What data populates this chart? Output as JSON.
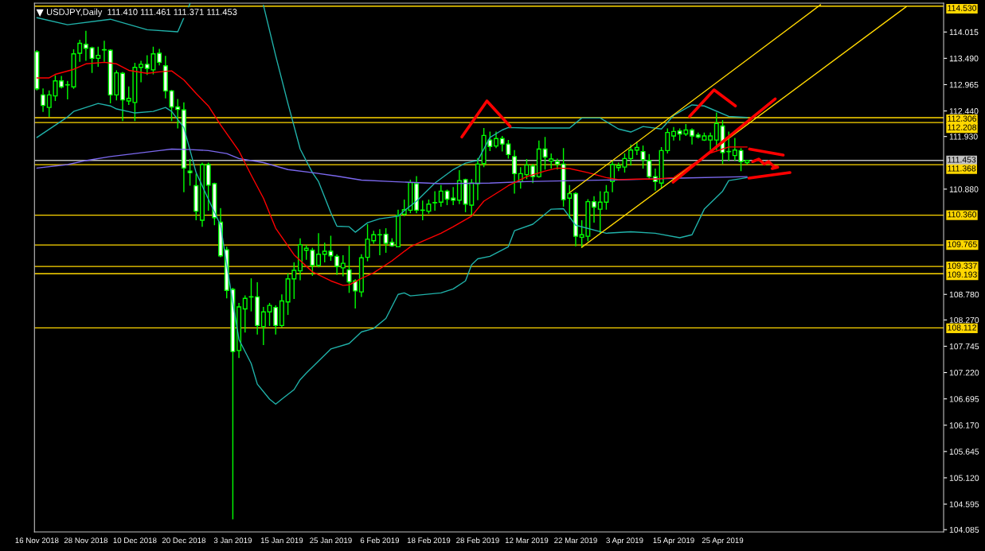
{
  "chart_data": {
    "type": "candlestick",
    "title": "USDJPY,Daily  111.410 111.461 111.371 111.453",
    "categories": [
      "16 Nov 2018",
      null,
      null,
      null,
      null,
      null,
      null,
      null,
      "28 Nov 2018",
      null,
      null,
      null,
      null,
      null,
      null,
      null,
      "10 Dec 2018",
      null,
      null,
      null,
      null,
      null,
      null,
      null,
      "20 Dec 2018",
      null,
      null,
      null,
      null,
      null,
      null,
      null,
      "3 Jan 2019",
      null,
      null,
      null,
      null,
      null,
      null,
      null,
      "15 Jan 2019",
      null,
      null,
      null,
      null,
      null,
      null,
      null,
      "25 Jan 2019",
      null,
      null,
      null,
      null,
      null,
      null,
      null,
      "6 Feb 2019",
      null,
      null,
      null,
      null,
      null,
      null,
      null,
      "18 Feb 2019",
      null,
      null,
      null,
      null,
      null,
      null,
      null,
      "28 Feb 2019",
      null,
      null,
      null,
      null,
      null,
      null,
      null,
      "12 Mar 2019",
      null,
      null,
      null,
      null,
      null,
      null,
      null,
      "22 Mar 2019",
      null,
      null,
      null,
      null,
      null,
      null,
      null,
      "3 Apr 2019",
      null,
      null,
      null,
      null,
      null,
      null,
      null,
      "15 Apr 2019",
      null,
      null,
      null,
      null,
      null,
      null,
      null,
      "25 Apr 2019",
      null,
      null,
      null,
      null,
      null,
      null,
      null,
      null,
      null,
      null,
      null,
      null,
      null,
      null,
      null,
      null,
      null,
      null,
      null,
      null,
      null,
      null,
      null,
      null,
      null,
      null,
      null,
      null,
      null,
      null,
      null,
      null,
      null,
      null,
      null,
      null
    ],
    "ylim": [
      104.04,
      114.59
    ],
    "yticks": [
      {
        "value": 114.015,
        "label": "114.015"
      },
      {
        "value": 113.49,
        "label": "113.490"
      },
      {
        "value": 112.965,
        "label": "112.965"
      },
      {
        "value": 112.44,
        "label": "112.440"
      },
      {
        "value": 111.93,
        "label": "111.930"
      },
      {
        "value": 110.88,
        "label": "110.880"
      },
      {
        "value": 108.78,
        "label": "108.780"
      },
      {
        "value": 108.27,
        "label": "108.270"
      },
      {
        "value": 107.745,
        "label": "107.745"
      },
      {
        "value": 107.22,
        "label": "107.220"
      },
      {
        "value": 106.695,
        "label": "106.695"
      },
      {
        "value": 106.17,
        "label": "106.170"
      },
      {
        "value": 105.645,
        "label": "105.645"
      },
      {
        "value": 105.12,
        "label": "105.120"
      },
      {
        "value": 104.595,
        "label": "104.595"
      },
      {
        "value": 104.085,
        "label": "104.085"
      }
    ],
    "ref_lines": [
      {
        "axis": "y",
        "value": 114.53,
        "label": "114.530",
        "color": "#ffd700"
      },
      {
        "axis": "y",
        "value": 112.306,
        "label": "112.306",
        "color": "#ffd700"
      },
      {
        "axis": "y",
        "value": 112.208,
        "label": "112.208",
        "color": "#ffd700"
      },
      {
        "axis": "y",
        "value": 111.453,
        "label": "111.453",
        "color": "#c0c0c0"
      },
      {
        "axis": "y",
        "value": 111.368,
        "label": "111.368",
        "color": "#ffd700"
      },
      {
        "axis": "y",
        "value": 110.36,
        "label": "110.360",
        "color": "#ffd700"
      },
      {
        "axis": "y",
        "value": 109.765,
        "label": "109.765",
        "color": "#ffd700"
      },
      {
        "axis": "y",
        "value": 109.337,
        "label": "109.337",
        "color": "#ffd700"
      },
      {
        "axis": "y",
        "value": 109.193,
        "label": "109.193",
        "color": "#ffd700"
      },
      {
        "axis": "y",
        "value": 108.112,
        "label": "108.112",
        "color": "#ffd700"
      }
    ],
    "series": [
      {
        "type": "line",
        "color": "#20b2aa",
        "values": [
          114.3,
          null,
          null,
          null,
          null,
          114.16,
          null,
          null,
          null,
          null,
          null,
          null,
          114.27,
          null,
          null,
          null,
          null,
          null,
          114.06,
          null,
          null,
          null,
          null,
          114.02,
          null,
          114.58,
          null,
          null,
          null,
          null,
          null,
          null,
          null,
          null,
          null,
          null,
          null,
          null,
          null,
          null,
          null,
          null,
          null,
          null,
          null,
          null,
          null,
          null,
          null,
          null,
          null,
          null,
          null,
          null,
          null,
          null,
          null,
          null,
          null,
          null,
          null,
          null,
          null,
          null,
          null,
          null,
          null,
          null,
          null,
          null,
          null,
          null,
          null,
          null,
          null,
          null,
          null,
          null,
          null,
          null,
          null,
          null,
          null,
          null,
          null,
          null,
          null,
          null,
          null,
          null,
          null,
          null,
          null,
          null,
          null,
          null,
          null,
          null,
          null,
          null,
          null,
          null,
          null,
          null,
          null,
          null,
          null,
          null,
          null,
          null,
          null,
          null,
          null,
          null,
          null,
          null,
          null,
          null,
          null,
          null,
          null,
          null,
          null,
          null,
          null,
          null,
          null,
          null,
          null,
          null,
          null,
          null,
          null,
          null,
          null,
          null,
          null,
          null,
          null,
          null,
          null,
          null,
          null,
          null,
          null,
          null,
          null,
          null,
          null
        ]
      },
      {
        "type": "line",
        "color": "#20b2aa",
        "values": [
          null,
          null,
          null,
          null,
          null,
          null,
          null,
          null,
          null,
          null,
          null,
          null,
          null,
          null,
          null,
          null,
          null,
          null,
          null,
          null,
          null,
          null,
          null,
          null,
          null,
          null,
          null,
          null,
          null,
          null,
          null,
          null,
          null,
          null,
          null,
          null,
          null,
          114.55,
          null,
          113.54,
          null,
          112.59,
          null,
          111.68,
          null,
          111.21,
          111.03,
          null,
          110.41,
          110.14,
          null,
          110.13,
          110.02,
          null,
          110.21,
          null,
          110.29,
          null,
          null,
          110.34,
          110.45,
          null,
          110.64,
          null,
          null,
          111.0,
          null,
          null,
          111.27,
          null,
          111.4,
          null,
          111.45,
          null,
          111.91,
          null,
          112.06,
          112.11,
          null,
          null,
          112.1,
          null,
          null,
          null,
          112.1,
          null,
          null,
          112.1,
          null,
          112.3,
          null,
          null,
          112.3,
          null,
          null,
          112.08,
          null,
          112.02,
          null,
          112.13,
          null,
          null,
          112.08,
          null,
          112.35,
          null,
          null,
          112.56,
          null,
          112.54,
          null,
          null,
          null,
          112.33,
          null,
          null,
          112.31,
          null,
          null,
          null,
          null,
          null,
          null,
          null,
          null,
          null,
          null,
          null,
          null,
          null,
          null,
          null,
          null,
          null,
          null,
          null,
          null,
          null,
          null,
          null,
          null,
          null,
          null,
          null,
          null,
          null,
          null,
          null,
          null
        ]
      },
      {
        "type": "line",
        "color": "#20b2aa",
        "values": [
          111.91,
          null,
          null,
          null,
          null,
          112.32,
          112.43,
          null,
          null,
          null,
          112.59,
          null,
          112.54,
          112.48,
          null,
          null,
          112.4,
          null,
          null,
          112.43,
          null,
          112.51,
          112.43,
          null,
          112.11,
          null,
          111.21,
          null,
          110.68,
          null,
          110.16,
          109.37,
          108.62,
          107.88,
          null,
          107.4,
          106.99,
          null,
          106.69,
          106.59,
          106.69,
          null,
          106.88,
          107.08,
          107.21,
          null,
          null,
          null,
          107.69,
          null,
          null,
          107.8,
          null,
          108.03,
          null,
          108.1,
          null,
          108.3,
          null,
          108.78,
          108.81,
          108.75,
          null,
          null,
          null,
          null,
          108.81,
          null,
          108.89,
          null,
          109.05,
          109.37,
          109.49,
          null,
          109.54,
          null,
          null,
          109.73,
          110.05,
          null,
          null,
          110.18,
          null,
          null,
          110.48,
          null,
          110.49,
          null,
          110.16,
          null,
          null,
          null,
          null,
          110.0,
          null,
          null,
          null,
          110.03,
          null,
          null,
          null,
          110.0,
          null,
          null,
          null,
          109.91,
          null,
          109.97,
          null,
          110.48,
          null,
          null,
          110.84,
          111.05,
          null,
          null,
          111.11,
          null,
          null,
          null,
          null,
          null,
          null,
          null,
          null,
          null,
          null,
          null,
          null,
          null,
          null,
          null,
          null,
          null,
          null,
          null,
          null,
          null,
          null,
          null,
          null,
          null,
          null,
          null,
          null,
          null,
          null,
          null,
          null
        ]
      },
      {
        "type": "line",
        "color": "#7b68ee",
        "values": [
          111.3,
          null,
          null,
          null,
          null,
          111.37,
          null,
          null,
          111.45,
          null,
          null,
          null,
          111.53,
          null,
          null,
          null,
          111.59,
          null,
          null,
          null,
          111.65,
          null,
          111.68,
          null,
          null,
          111.67,
          null,
          null,
          111.65,
          null,
          null,
          111.59,
          null,
          111.49,
          null,
          null,
          null,
          111.41,
          null,
          null,
          null,
          111.27,
          null,
          null,
          null,
          111.21,
          null,
          null,
          null,
          111.14,
          null,
          null,
          null,
          111.06,
          null,
          null,
          null,
          null,
          111.03,
          null,
          null,
          null,
          null,
          null,
          null,
          null,
          110.99,
          null,
          null,
          null,
          null,
          null,
          null,
          null,
          111.0,
          null,
          null,
          null,
          null,
          null,
          111.03,
          null,
          null,
          null,
          null,
          null,
          null,
          null,
          111.05,
          null,
          null,
          null,
          null,
          null,
          null,
          null,
          null,
          111.07,
          null,
          null,
          null,
          null,
          null,
          null,
          null,
          111.1,
          null,
          null,
          null,
          null,
          null,
          null,
          null,
          null,
          null,
          null,
          111.13,
          null,
          null,
          null,
          null,
          null,
          null,
          null,
          null,
          null,
          null,
          null,
          null,
          null,
          null,
          null,
          null,
          null,
          null,
          null,
          null,
          null,
          null,
          null,
          null,
          null,
          null,
          null,
          null,
          null,
          null,
          null,
          null
        ]
      },
      {
        "type": "line",
        "color": "#ff0000",
        "values": [
          113.1,
          null,
          113.1,
          113.17,
          null,
          null,
          113.27,
          null,
          113.38,
          null,
          null,
          113.41,
          null,
          113.38,
          null,
          113.25,
          null,
          null,
          113.19,
          null,
          113.22,
          null,
          113.24,
          null,
          113.06,
          null,
          112.79,
          null,
          112.54,
          null,
          112.16,
          null,
          null,
          111.64,
          null,
          111.16,
          null,
          110.7,
          null,
          110.1,
          null,
          null,
          109.57,
          null,
          null,
          109.23,
          null,
          null,
          109.05,
          null,
          108.96,
          108.97,
          null,
          109.1,
          null,
          109.21,
          null,
          null,
          109.45,
          null,
          null,
          109.73,
          null,
          109.84,
          null,
          null,
          110.0,
          null,
          110.13,
          null,
          null,
          110.34,
          null,
          110.64,
          null,
          null,
          110.87,
          110.95,
          null,
          null,
          111.13,
          null,
          null,
          111.24,
          null,
          111.3,
          null,
          111.29,
          null,
          null,
          111.21,
          null,
          null,
          111.11,
          null,
          111.07,
          null,
          null,
          111.08,
          null,
          null,
          111.08,
          null,
          null,
          111.11,
          null,
          null,
          111.37,
          null,
          null,
          111.6,
          null,
          null,
          111.72,
          null,
          null,
          111.72,
          null,
          null,
          null,
          null,
          null,
          null,
          null,
          null,
          null,
          null,
          null,
          null,
          null,
          null,
          null,
          null,
          null,
          null,
          null,
          null,
          null,
          null,
          null,
          null,
          null,
          null,
          null,
          null,
          null,
          null,
          null,
          null
        ]
      },
      {
        "type": "line",
        "color": "#ffd700",
        "values": [
          null,
          null,
          null,
          null,
          null,
          null,
          null,
          null,
          null,
          null,
          null,
          null,
          null,
          null,
          null,
          null,
          null,
          null,
          null,
          null,
          null,
          null,
          null,
          null,
          null,
          null,
          null,
          null,
          null,
          null,
          null,
          null,
          null,
          null,
          null,
          null,
          null,
          null,
          null,
          null,
          null,
          null,
          null,
          null,
          null,
          null,
          null,
          null,
          null,
          null,
          null,
          null,
          null,
          null,
          null,
          null,
          null,
          null,
          null,
          null,
          null,
          null,
          null,
          null,
          null,
          null,
          null,
          null,
          null,
          null,
          null,
          null,
          null,
          null,
          null,
          null,
          null,
          null,
          null,
          null,
          null,
          null,
          null,
          null,
          null,
          null,
          null,
          110.81,
          null,
          null,
          null,
          null,
          null,
          null,
          null,
          null,
          null,
          null,
          null,
          null,
          null,
          null,
          null,
          null,
          null,
          null,
          null,
          null,
          null,
          null,
          null,
          null,
          null,
          null,
          null,
          null,
          null,
          null,
          null,
          null,
          null,
          null,
          null,
          null,
          null,
          null,
          null,
          null,
          114.56,
          null,
          null,
          null,
          null,
          null,
          null,
          null,
          null,
          null,
          null,
          null,
          null,
          null,
          null,
          null,
          null,
          null,
          null,
          null,
          null
        ]
      },
      {
        "type": "line",
        "color": "#ffd700",
        "values": [
          null,
          null,
          null,
          null,
          null,
          null,
          null,
          null,
          null,
          null,
          null,
          null,
          null,
          null,
          null,
          null,
          null,
          null,
          null,
          null,
          null,
          null,
          null,
          null,
          null,
          null,
          null,
          null,
          null,
          null,
          null,
          null,
          null,
          null,
          null,
          null,
          null,
          null,
          null,
          null,
          null,
          null,
          null,
          null,
          null,
          null,
          null,
          null,
          null,
          null,
          null,
          null,
          null,
          null,
          null,
          null,
          null,
          null,
          null,
          null,
          null,
          null,
          null,
          null,
          null,
          null,
          null,
          null,
          null,
          null,
          null,
          null,
          null,
          null,
          null,
          null,
          null,
          null,
          null,
          null,
          null,
          null,
          null,
          null,
          null,
          null,
          null,
          null,
          null,
          109.72,
          null,
          null,
          null,
          null,
          null,
          null,
          null,
          null,
          null,
          null,
          null,
          null,
          null,
          null,
          null,
          null,
          null,
          null,
          null,
          null,
          null,
          null,
          null,
          null,
          null,
          null,
          null,
          null,
          null,
          null,
          null,
          null,
          null,
          null,
          null,
          null,
          null,
          null,
          null,
          null,
          null,
          null,
          null,
          null,
          null,
          null,
          null,
          null,
          null,
          null,
          null,
          null,
          114.52,
          null,
          null,
          null,
          null,
          null,
          null
        ]
      },
      {
        "type": "candlestick",
        "color": "#00ff00",
        "ohlc": [
          [
            113.62,
            113.65,
            112.85,
            112.88
          ],
          [
            112.76,
            112.89,
            112.42,
            112.55
          ],
          [
            112.51,
            112.85,
            112.32,
            112.76
          ],
          [
            112.74,
            113.15,
            112.64,
            113.04
          ],
          [
            113.04,
            113.14,
            112.89,
            112.92
          ],
          [
            112.96,
            113.04,
            112.67,
            112.96
          ],
          [
            112.92,
            113.67,
            112.88,
            113.58
          ],
          [
            113.59,
            113.86,
            113.42,
            113.79
          ],
          [
            113.77,
            114.04,
            113.44,
            113.69
          ],
          [
            113.7,
            113.72,
            113.2,
            113.49
          ],
          [
            113.49,
            113.72,
            113.32,
            113.55
          ],
          [
            113.66,
            113.84,
            113.42,
            113.66
          ],
          [
            113.65,
            113.67,
            112.59,
            112.76
          ],
          [
            112.76,
            113.25,
            112.65,
            113.2
          ],
          [
            113.19,
            113.22,
            112.24,
            112.66
          ],
          [
            112.64,
            112.93,
            112.56,
            112.69
          ],
          [
            112.61,
            113.4,
            112.24,
            113.31
          ],
          [
            113.31,
            113.44,
            113.01,
            113.37
          ],
          [
            113.37,
            113.55,
            113.16,
            113.29
          ],
          [
            113.26,
            113.72,
            113.17,
            113.58
          ],
          [
            113.59,
            113.68,
            113.35,
            113.41
          ],
          [
            113.34,
            113.54,
            112.69,
            112.84
          ],
          [
            112.84,
            112.86,
            112.24,
            112.52
          ],
          [
            112.52,
            112.68,
            112.09,
            112.47
          ],
          [
            112.46,
            112.61,
            110.82,
            111.3
          ],
          [
            111.24,
            111.48,
            110.95,
            111.21
          ],
          [
            110.95,
            111.19,
            110.26,
            110.44
          ],
          [
            110.26,
            111.41,
            110.13,
            111.37
          ],
          [
            111.37,
            111.41,
            110.45,
            110.96
          ],
          [
            110.99,
            111.01,
            110.16,
            110.31
          ],
          [
            110.22,
            110.5,
            109.52,
            109.55
          ],
          [
            109.67,
            109.73,
            108.7,
            108.86
          ],
          [
            108.88,
            108.91,
            104.29,
            107.64
          ],
          [
            107.66,
            108.61,
            107.51,
            108.53
          ],
          [
            108.49,
            108.76,
            108.02,
            108.7
          ],
          [
            108.73,
            109.1,
            108.44,
            108.73
          ],
          [
            108.73,
            109.02,
            107.98,
            108.16
          ],
          [
            108.14,
            108.53,
            107.77,
            108.43
          ],
          [
            108.43,
            108.61,
            108.15,
            108.56
          ],
          [
            108.52,
            108.56,
            107.98,
            108.16
          ],
          [
            108.16,
            108.78,
            108.12,
            108.65
          ],
          [
            108.63,
            109.2,
            108.37,
            109.09
          ],
          [
            109.09,
            109.42,
            108.69,
            109.26
          ],
          [
            109.25,
            109.9,
            109.06,
            109.77
          ],
          [
            109.66,
            109.77,
            109.47,
            109.7
          ],
          [
            109.66,
            109.71,
            109.15,
            109.36
          ],
          [
            109.36,
            110.0,
            109.32,
            109.58
          ],
          [
            109.58,
            109.81,
            109.42,
            109.64
          ],
          [
            109.64,
            109.95,
            109.45,
            109.55
          ],
          [
            109.54,
            109.58,
            109.17,
            109.34
          ],
          [
            109.31,
            109.56,
            109.14,
            109.4
          ],
          [
            109.27,
            109.75,
            108.81,
            109.03
          ],
          [
            109.05,
            109.08,
            108.5,
            108.85
          ],
          [
            108.83,
            109.58,
            108.73,
            109.51
          ],
          [
            109.52,
            110.18,
            109.44,
            109.88
          ],
          [
            109.85,
            110.05,
            109.79,
            109.97
          ],
          [
            109.97,
            110.08,
            109.56,
            109.97
          ],
          [
            109.98,
            110.1,
            109.61,
            109.8
          ],
          [
            109.82,
            109.9,
            109.73,
            109.75
          ],
          [
            109.73,
            110.47,
            109.72,
            110.36
          ],
          [
            110.38,
            110.67,
            110.34,
            110.47
          ],
          [
            110.46,
            111.07,
            110.4,
            111.01
          ],
          [
            110.99,
            111.14,
            110.4,
            110.46
          ],
          [
            110.46,
            110.65,
            110.26,
            110.46
          ],
          [
            110.44,
            110.67,
            110.39,
            110.58
          ],
          [
            110.61,
            110.84,
            110.45,
            110.61
          ],
          [
            110.62,
            110.96,
            110.53,
            110.84
          ],
          [
            110.84,
            110.87,
            110.56,
            110.68
          ],
          [
            110.7,
            110.92,
            110.56,
            110.66
          ],
          [
            110.66,
            111.26,
            110.58,
            111.05
          ],
          [
            111.07,
            111.09,
            110.42,
            110.58
          ],
          [
            110.56,
            111.08,
            110.37,
            111.0
          ],
          [
            110.99,
            111.5,
            110.66,
            111.38
          ],
          [
            111.39,
            112.1,
            111.32,
            111.95
          ],
          [
            111.86,
            112.03,
            111.64,
            111.73
          ],
          [
            111.74,
            112.03,
            111.7,
            111.89
          ],
          [
            111.89,
            111.94,
            111.63,
            111.78
          ],
          [
            111.78,
            111.86,
            111.49,
            111.57
          ],
          [
            111.53,
            111.66,
            110.79,
            111.19
          ],
          [
            111.03,
            111.32,
            110.89,
            111.19
          ],
          [
            111.17,
            111.48,
            111.08,
            111.36
          ],
          [
            111.34,
            111.38,
            111.0,
            111.13
          ],
          [
            111.13,
            111.85,
            111.11,
            111.68
          ],
          [
            111.68,
            111.92,
            111.27,
            111.52
          ],
          [
            111.44,
            111.59,
            111.29,
            111.48
          ],
          [
            111.43,
            111.49,
            111.27,
            111.38
          ],
          [
            111.38,
            111.7,
            110.53,
            110.67
          ],
          [
            110.7,
            110.96,
            110.29,
            110.79
          ],
          [
            110.79,
            110.82,
            109.74,
            109.94
          ],
          [
            109.92,
            110.26,
            109.71,
            109.97
          ],
          [
            109.94,
            110.68,
            109.84,
            110.63
          ],
          [
            110.63,
            110.74,
            110.21,
            110.52
          ],
          [
            110.48,
            110.84,
            110.0,
            110.62
          ],
          [
            110.62,
            110.96,
            110.47,
            110.82
          ],
          [
            111.03,
            111.45,
            110.82,
            111.37
          ],
          [
            111.31,
            111.41,
            111.24,
            111.35
          ],
          [
            111.32,
            111.59,
            111.21,
            111.49
          ],
          [
            111.49,
            111.77,
            111.35,
            111.66
          ],
          [
            111.66,
            111.82,
            111.56,
            111.71
          ],
          [
            111.63,
            111.75,
            111.29,
            111.47
          ],
          [
            111.45,
            111.58,
            111.07,
            111.13
          ],
          [
            111.13,
            111.29,
            110.85,
            111.03
          ],
          [
            111.0,
            111.72,
            110.91,
            111.65
          ],
          [
            111.65,
            112.09,
            111.59,
            112.01
          ],
          [
            111.94,
            112.12,
            111.85,
            112.03
          ],
          [
            112.04,
            112.09,
            111.85,
            111.98
          ],
          [
            111.98,
            112.18,
            111.94,
            112.06
          ],
          [
            112.06,
            112.09,
            111.77,
            111.94
          ],
          [
            111.96,
            112.01,
            111.89,
            111.92
          ],
          [
            111.86,
            112.01,
            111.84,
            111.94
          ],
          [
            111.86,
            112.01,
            111.66,
            111.94
          ],
          [
            111.86,
            112.41,
            111.66,
            112.19
          ],
          [
            112.14,
            112.26,
            111.38,
            111.61
          ],
          [
            111.63,
            112.03,
            111.44,
            111.63
          ],
          [
            111.55,
            111.9,
            111.45,
            111.66
          ],
          [
            111.65,
            111.7,
            111.24,
            111.43
          ],
          [
            111.41,
            111.461,
            111.371,
            111.453
          ],
          null,
          null,
          null,
          null,
          null,
          null,
          null,
          null,
          null,
          null,
          null,
          null,
          null,
          null,
          null,
          null,
          null,
          null,
          null,
          null,
          null,
          null,
          null,
          null,
          null,
          null,
          null,
          null,
          null,
          null,
          null,
          null
        ],
        "colors": [
          "#ffffff",
          "#ffffff",
          "#000000",
          "#000000",
          "#ffffff",
          "#00ff00",
          "#000000",
          "#000000",
          "#ffffff",
          "#ffffff",
          "#000000",
          "#00ff00",
          "#ffffff",
          "#000000",
          "#ffffff",
          "#000000",
          "#000000",
          "#000000",
          "#ffffff",
          "#000000",
          "#ffffff",
          "#ffffff",
          "#ffffff",
          "#ffffff",
          "#ffffff",
          "#ffffff",
          "#ffffff",
          "#000000",
          "#ffffff",
          "#ffffff",
          "#ffffff",
          "#ffffff",
          "#ffffff",
          "#000000",
          "#000000",
          "#00ff00",
          "#ffffff",
          "#000000",
          "#000000",
          "#ffffff",
          "#000000",
          "#000000",
          "#000000",
          "#000000",
          "#000000",
          "#ffffff",
          "#000000",
          "#000000",
          "#ffffff",
          "#ffffff",
          "#000000",
          "#ffffff",
          "#ffffff",
          "#000000",
          "#000000",
          "#000000",
          "#00ff00",
          "#ffffff",
          "#ffffff",
          "#000000",
          "#000000",
          "#000000",
          "#ffffff",
          "#00ff00",
          "#000000",
          "#00ff00",
          "#000000",
          "#ffffff",
          "#ffffff",
          "#000000",
          "#ffffff",
          "#000000",
          "#000000",
          "#000000",
          "#ffffff",
          "#000000",
          "#ffffff",
          "#ffffff",
          "#ffffff",
          "#000000",
          "#000000",
          "#ffffff",
          "#000000",
          "#ffffff",
          "#000000",
          "#ffffff",
          "#ffffff",
          "#000000",
          "#ffffff",
          "#000000",
          "#000000",
          "#ffffff",
          "#000000",
          "#000000",
          "#000000",
          "#000000",
          "#000000",
          "#000000",
          "#000000",
          "#ffffff",
          "#ffffff",
          "#ffffff",
          "#000000",
          "#000000",
          "#000000",
          "#ffffff",
          "#000000",
          "#ffffff",
          "#ffffff",
          "#000000",
          "#000000",
          "#000000",
          "#ffffff",
          "#00ff00",
          "#000000",
          "#ffffff",
          "#000000",
          null,
          null,
          null,
          null,
          null,
          null,
          null,
          null,
          null,
          null,
          null,
          null,
          null,
          null,
          null,
          null,
          null,
          null,
          null,
          null,
          null,
          null,
          null,
          null,
          null,
          null,
          null,
          null,
          null,
          null,
          null,
          null
        ]
      }
    ]
  }
}
